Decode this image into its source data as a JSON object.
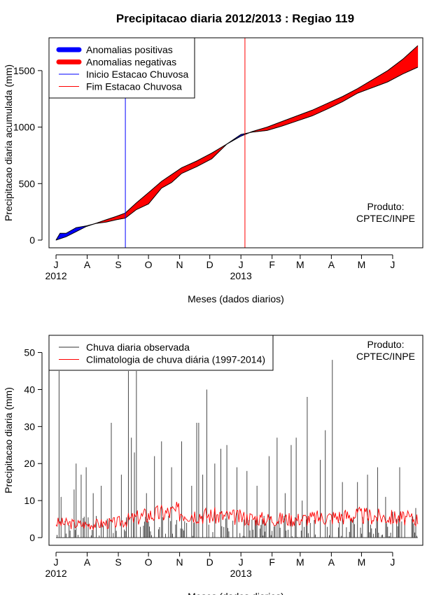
{
  "page_title": "Precipitacao diaria 2012/2013 : Regiao 119",
  "chart_data": [
    {
      "type": "area",
      "name": "accumulated",
      "ylabel": "Precipitacao diaria acumulada (mm)",
      "xlabel": "Meses (dados diarios)",
      "ylim": [
        0,
        1750
      ],
      "yticks": [
        0,
        500,
        1000,
        1500
      ],
      "xlim": [
        -7,
        365
      ],
      "month_ticks": [
        {
          "day": 0,
          "label": "J"
        },
        {
          "day": 31,
          "label": "A"
        },
        {
          "day": 62,
          "label": "S"
        },
        {
          "day": 92,
          "label": "O"
        },
        {
          "day": 123,
          "label": "N"
        },
        {
          "day": 153,
          "label": "D"
        },
        {
          "day": 184,
          "label": "J"
        },
        {
          "day": 215,
          "label": "F"
        },
        {
          "day": 243,
          "label": "M"
        },
        {
          "day": 274,
          "label": "A"
        },
        {
          "day": 304,
          "label": "M"
        },
        {
          "day": 335,
          "label": "J"
        }
      ],
      "year_labels": [
        {
          "day": 0,
          "label": "2012"
        },
        {
          "day": 184,
          "label": "2013"
        }
      ],
      "legend": [
        {
          "label": "Anomalias positivas",
          "color": "#0000ff",
          "style": "thick"
        },
        {
          "label": "Anomalias negativas",
          "color": "#ff0000",
          "style": "thick"
        },
        {
          "label": "Inicio Estacao Chuvosa",
          "color": "#0000ff",
          "style": "thin"
        },
        {
          "label": "Fim Estacao Chuvosa",
          "color": "#ff0000",
          "style": "thin"
        }
      ],
      "legend_position": "top-left",
      "vlines": [
        {
          "day": 69,
          "color": "#0000ff"
        },
        {
          "day": 188,
          "color": "#ff0000"
        }
      ],
      "annotation": [
        "Produto:",
        "CPTEC/INPE"
      ],
      "annotation_position": "bottom-right",
      "series": [
        {
          "name": "Climatologia acumulada",
          "points": [
            [
              0,
              0
            ],
            [
              10,
              30
            ],
            [
              20,
              75
            ],
            [
              30,
              120
            ],
            [
              40,
              150
            ],
            [
              50,
              180
            ],
            [
              60,
              210
            ],
            [
              69,
              240
            ],
            [
              80,
              330
            ],
            [
              92,
              420
            ],
            [
              105,
              520
            ],
            [
              115,
              580
            ],
            [
              125,
              640
            ],
            [
              140,
              700
            ],
            [
              155,
              770
            ],
            [
              170,
              850
            ],
            [
              184,
              920
            ],
            [
              195,
              960
            ],
            [
              210,
              1000
            ],
            [
              225,
              1050
            ],
            [
              240,
              1100
            ],
            [
              255,
              1150
            ],
            [
              270,
              1210
            ],
            [
              285,
              1270
            ],
            [
              300,
              1340
            ],
            [
              315,
              1420
            ],
            [
              330,
              1500
            ],
            [
              345,
              1600
            ],
            [
              360,
              1720
            ]
          ]
        },
        {
          "name": "Chuva observada acumulada",
          "points": [
            [
              0,
              0
            ],
            [
              4,
              60
            ],
            [
              10,
              60
            ],
            [
              20,
              110
            ],
            [
              30,
              125
            ],
            [
              40,
              148
            ],
            [
              50,
              160
            ],
            [
              60,
              180
            ],
            [
              69,
              195
            ],
            [
              80,
              270
            ],
            [
              92,
              320
            ],
            [
              105,
              460
            ],
            [
              115,
              510
            ],
            [
              125,
              590
            ],
            [
              140,
              650
            ],
            [
              155,
              720
            ],
            [
              170,
              850
            ],
            [
              184,
              935
            ],
            [
              195,
              955
            ],
            [
              210,
              970
            ],
            [
              225,
              1010
            ],
            [
              240,
              1055
            ],
            [
              255,
              1100
            ],
            [
              270,
              1160
            ],
            [
              285,
              1225
            ],
            [
              300,
              1300
            ],
            [
              315,
              1350
            ],
            [
              330,
              1400
            ],
            [
              345,
              1470
            ],
            [
              360,
              1530
            ]
          ]
        }
      ]
    },
    {
      "type": "line",
      "name": "daily",
      "ylabel": "Precipitacao diaria (mm)",
      "xlabel": "Meses (dados diarios)",
      "ylim": [
        0,
        52
      ],
      "yticks": [
        0,
        10,
        20,
        30,
        40,
        50
      ],
      "xlim": [
        -7,
        365
      ],
      "legend": [
        {
          "label": "Chuva diaria observada",
          "color": "#333333"
        },
        {
          "label": "Climatologia de chuva diária (1997-2014)",
          "color": "#ff0000"
        }
      ],
      "legend_position": "top-left",
      "annotation": [
        "Produto:",
        "CPTEC/INPE"
      ],
      "annotation_position": "top-right",
      "observed_peaks": [
        [
          3,
          45
        ],
        [
          5,
          11
        ],
        [
          18,
          13
        ],
        [
          20,
          20
        ],
        [
          25,
          17
        ],
        [
          30,
          19
        ],
        [
          37,
          12
        ],
        [
          45,
          14
        ],
        [
          55,
          31
        ],
        [
          65,
          17
        ],
        [
          72,
          45
        ],
        [
          75,
          27
        ],
        [
          78,
          23
        ],
        [
          80,
          45
        ],
        [
          90,
          12
        ],
        [
          98,
          22
        ],
        [
          105,
          26
        ],
        [
          115,
          19
        ],
        [
          125,
          26
        ],
        [
          135,
          14
        ],
        [
          140,
          31
        ],
        [
          142,
          31
        ],
        [
          146,
          17
        ],
        [
          150,
          40
        ],
        [
          158,
          20
        ],
        [
          164,
          24
        ],
        [
          170,
          25
        ],
        [
          180,
          19
        ],
        [
          190,
          18
        ],
        [
          200,
          14
        ],
        [
          212,
          22
        ],
        [
          220,
          27
        ],
        [
          228,
          12
        ],
        [
          234,
          25
        ],
        [
          239,
          27
        ],
        [
          245,
          10
        ],
        [
          250,
          38
        ],
        [
          263,
          21
        ],
        [
          268,
          29
        ],
        [
          275,
          48
        ],
        [
          285,
          15
        ],
        [
          300,
          15
        ],
        [
          310,
          17
        ],
        [
          320,
          19
        ],
        [
          328,
          11
        ],
        [
          335,
          7
        ],
        [
          342,
          19
        ],
        [
          354,
          5
        ],
        [
          358,
          8
        ]
      ],
      "climatology_level": [
        [
          0,
          4
        ],
        [
          30,
          3.5
        ],
        [
          60,
          4
        ],
        [
          90,
          6
        ],
        [
          120,
          7
        ],
        [
          150,
          6
        ],
        [
          180,
          5.5
        ],
        [
          210,
          5
        ],
        [
          240,
          5
        ],
        [
          270,
          5.5
        ],
        [
          300,
          6
        ],
        [
          330,
          5.5
        ],
        [
          360,
          5
        ]
      ]
    }
  ]
}
